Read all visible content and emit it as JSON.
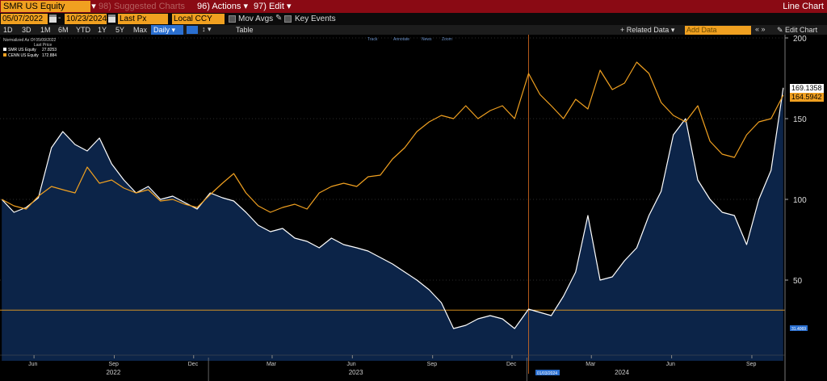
{
  "titlebar": {
    "ticker": "SMR US Equity",
    "suggested": "98) Suggested Charts",
    "actions": "96) Actions",
    "edit": "97) Edit",
    "window_title": "Line Chart"
  },
  "controls": {
    "start_date": "05/07/2022",
    "end_date": "10/23/2024",
    "field": "Last Px",
    "currency": "Local CCY",
    "mov_avgs": "Mov Avgs",
    "key_events": "Key Events",
    "periods": [
      "1D",
      "3D",
      "1M",
      "6M",
      "YTD",
      "1Y",
      "5Y",
      "Max"
    ],
    "frequency": "Daily",
    "table": "Table",
    "related_data": "+ Related Data",
    "add_data_placeholder": "Add Data",
    "edit_chart": "Edit Chart"
  },
  "toolbar_mini": [
    "Track",
    "Annotate",
    "News",
    "Zoom"
  ],
  "legend": {
    "header1": "Normalized As Of 05/09/2022",
    "header2": "Last Price",
    "items": [
      {
        "name": "SMR US Equity",
        "value": "27.8253",
        "color": "#ffffff"
      },
      {
        "name": "CENN US Equity",
        "value": "172.884",
        "color": "#f0a020"
      }
    ]
  },
  "cursor_date_label": "01/03/2024",
  "baseline_label": "31.4069",
  "last_labels": {
    "smr": "169.1358",
    "orange": "164.5942"
  },
  "chart_data": {
    "type": "area",
    "x_range": [
      "2022-05-07",
      "2024-10-23"
    ],
    "ylim": [
      0,
      200
    ],
    "yticks": [
      50,
      100,
      150,
      200
    ],
    "x_month_ticks": [
      "Jun",
      "Sep",
      "Dec",
      "Mar",
      "Jun",
      "Sep",
      "Dec",
      "Mar",
      "Jun",
      "Sep"
    ],
    "x_year_labels": [
      "2022",
      "2023",
      "2024"
    ],
    "grid": true,
    "legend": "top-left",
    "baseline": 31.4069,
    "cursor_date": "2024-01-03",
    "series": [
      {
        "name": "SMR US Equity",
        "color": "#ffffff",
        "fill": "#0c2448",
        "dates": [
          "2022-05-09",
          "2022-05-23",
          "2022-06-06",
          "2022-06-20",
          "2022-07-05",
          "2022-07-18",
          "2022-08-01",
          "2022-08-15",
          "2022-08-29",
          "2022-09-12",
          "2022-09-26",
          "2022-10-10",
          "2022-10-24",
          "2022-11-07",
          "2022-11-21",
          "2022-12-05",
          "2022-12-19",
          "2023-01-03",
          "2023-01-17",
          "2023-01-30",
          "2023-02-13",
          "2023-02-27",
          "2023-03-13",
          "2023-03-27",
          "2023-04-10",
          "2023-04-24",
          "2023-05-08",
          "2023-05-22",
          "2023-06-05",
          "2023-06-20",
          "2023-07-03",
          "2023-07-17",
          "2023-07-31",
          "2023-08-14",
          "2023-08-28",
          "2023-09-11",
          "2023-09-25",
          "2023-10-09",
          "2023-10-23",
          "2023-11-06",
          "2023-11-20",
          "2023-12-04",
          "2023-12-18",
          "2024-01-03",
          "2024-01-16",
          "2024-01-29",
          "2024-02-12",
          "2024-02-26",
          "2024-03-11",
          "2024-03-25",
          "2024-04-08",
          "2024-04-22",
          "2024-05-06",
          "2024-05-20",
          "2024-06-03",
          "2024-06-17",
          "2024-07-01",
          "2024-07-15",
          "2024-07-29",
          "2024-08-12",
          "2024-08-26",
          "2024-09-09",
          "2024-09-23",
          "2024-10-07",
          "2024-10-21"
        ],
        "values": [
          100,
          92,
          95,
          101,
          132,
          142,
          134,
          130,
          138,
          122,
          112,
          104,
          108,
          100,
          102,
          98,
          94,
          104,
          101,
          99,
          92,
          84,
          80,
          82,
          76,
          74,
          70,
          76,
          72,
          70,
          68,
          64,
          60,
          55,
          50,
          44,
          36,
          20,
          22,
          26,
          28,
          26,
          20,
          32,
          30,
          28,
          40,
          55,
          90,
          50,
          52,
          62,
          70,
          90,
          105,
          140,
          150,
          112,
          100,
          92,
          90,
          72,
          100,
          118,
          169.1358
        ]
      },
      {
        "name": "CENN US Equity",
        "color": "#f0a020",
        "dates": [
          "2022-05-09",
          "2022-05-23",
          "2022-06-06",
          "2022-06-20",
          "2022-07-05",
          "2022-07-18",
          "2022-08-01",
          "2022-08-15",
          "2022-08-29",
          "2022-09-12",
          "2022-09-26",
          "2022-10-10",
          "2022-10-24",
          "2022-11-07",
          "2022-11-21",
          "2022-12-05",
          "2022-12-19",
          "2023-01-03",
          "2023-01-17",
          "2023-01-30",
          "2023-02-13",
          "2023-02-27",
          "2023-03-13",
          "2023-03-27",
          "2023-04-10",
          "2023-04-24",
          "2023-05-08",
          "2023-05-22",
          "2023-06-05",
          "2023-06-20",
          "2023-07-03",
          "2023-07-17",
          "2023-07-31",
          "2023-08-14",
          "2023-08-28",
          "2023-09-11",
          "2023-09-25",
          "2023-10-09",
          "2023-10-23",
          "2023-11-06",
          "2023-11-20",
          "2023-12-04",
          "2023-12-18",
          "2024-01-03",
          "2024-01-16",
          "2024-01-29",
          "2024-02-12",
          "2024-02-26",
          "2024-03-11",
          "2024-03-25",
          "2024-04-08",
          "2024-04-22",
          "2024-05-06",
          "2024-05-20",
          "2024-06-03",
          "2024-06-17",
          "2024-07-01",
          "2024-07-15",
          "2024-07-29",
          "2024-08-12",
          "2024-08-26",
          "2024-09-09",
          "2024-09-23",
          "2024-10-07",
          "2024-10-21"
        ],
        "values": [
          100,
          96,
          94,
          102,
          108,
          106,
          104,
          120,
          110,
          112,
          107,
          104,
          106,
          99,
          100,
          97,
          95,
          103,
          110,
          116,
          104,
          96,
          92,
          95,
          97,
          94,
          104,
          108,
          110,
          108,
          114,
          115,
          125,
          132,
          142,
          148,
          152,
          150,
          158,
          150,
          155,
          158,
          150,
          178,
          165,
          158,
          150,
          162,
          156,
          180,
          168,
          172,
          185,
          178,
          160,
          152,
          148,
          158,
          136,
          128,
          126,
          140,
          148,
          150,
          164.5942
        ]
      }
    ]
  }
}
